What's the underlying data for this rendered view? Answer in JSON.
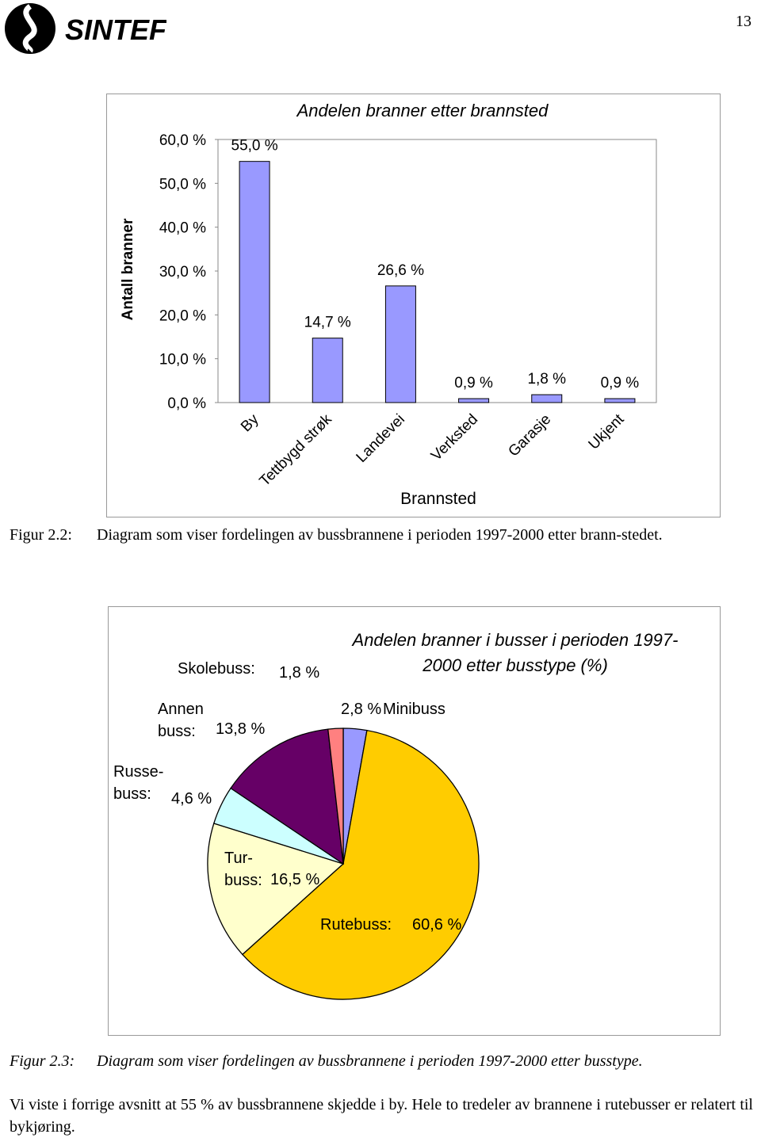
{
  "header": {
    "logo": "SINTEF",
    "page_number": "13"
  },
  "chart_data": [
    {
      "type": "bar",
      "title": "Andelen branner etter brannsted",
      "y_label": "Antall branner",
      "x_label": "Brannsted",
      "categories": [
        "By",
        "Tettbygd strøk",
        "Landevei",
        "Verksted",
        "Garasje",
        "Ukjent"
      ],
      "values": [
        55.0,
        14.7,
        26.6,
        0.9,
        1.8,
        0.9
      ],
      "value_labels": [
        "55,0 %",
        "14,7 %",
        "26,6 %",
        "0,9 %",
        "1,8 %",
        "0,9 %"
      ],
      "color": "#9999ff",
      "ylim": [
        0,
        60
      ],
      "yticks": [
        {
          "value": 0,
          "label": "0,0 %"
        },
        {
          "value": 10,
          "label": "10,0 %"
        },
        {
          "value": 20,
          "label": "20,0 %"
        },
        {
          "value": 30,
          "label": "30,0 %"
        },
        {
          "value": 40,
          "label": "40,0 %"
        },
        {
          "value": 50,
          "label": "50,0 %"
        },
        {
          "value": 60,
          "label": "60,0 %"
        }
      ],
      "grid": false
    },
    {
      "type": "pie",
      "title": "Andelen branner i busser i perioden 1997-2000 etter busstype (%)",
      "categories": [
        "Minibuss",
        "Rutebuss:",
        "Tur-buss:",
        "Russe-buss:",
        "Annen buss:",
        "Skolebuss:"
      ],
      "values": [
        2.8,
        60.6,
        16.5,
        4.6,
        13.8,
        1.8
      ],
      "value_labels": [
        "2,8 %",
        "60,6 %",
        "16,5 %",
        "4,6 %",
        "13,8 %",
        "1,8 %"
      ],
      "colors": [
        "#9999ff",
        "#ffcc00",
        "#ffffcc",
        "#ccffff",
        "#660066",
        "#ff8080"
      ]
    }
  ],
  "captions": [
    {
      "label": "Figur 2.2:",
      "text": "Diagram som viser fordelingen av bussbrannene i perioden 1997-2000 etter brann-stedet."
    },
    {
      "label": "Figur 2.3:",
      "text": "Diagram som viser fordelingen av bussbrannene i perioden 1997-2000 etter busstype."
    }
  ],
  "paragraph": "Vi viste i forrige avsnitt at 55 % av bussbrannene skjedde i by. Hele to tredeler av brannene i rutebusser er relatert til bykjøring."
}
